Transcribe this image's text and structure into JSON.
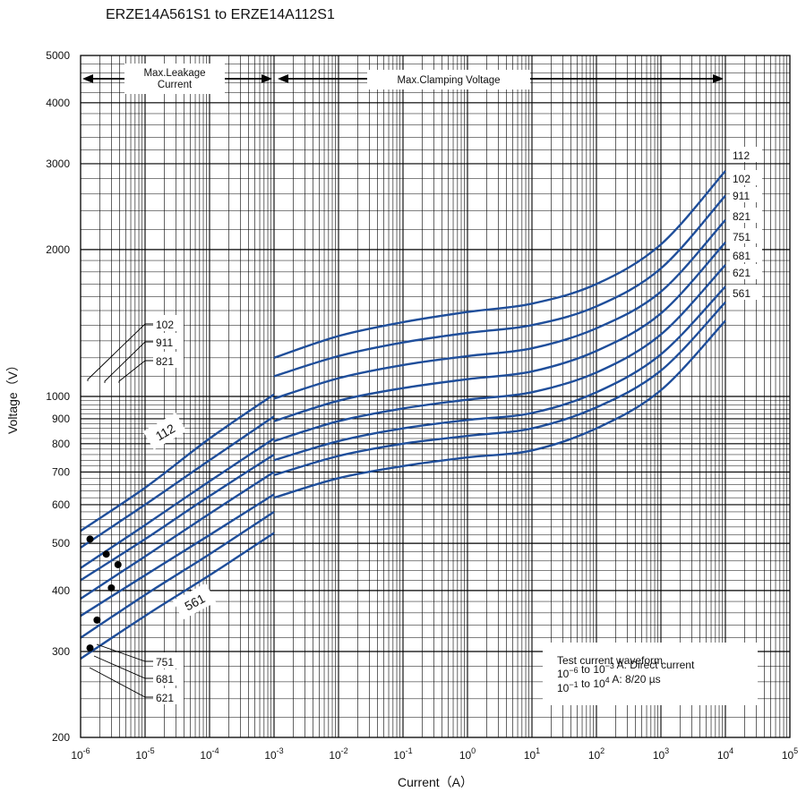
{
  "title": "ERZE14A561S1 to ERZE14A112S1",
  "chart_data": {
    "type": "line",
    "title": "ERZE14A561S1 to ERZE14A112S1",
    "xlabel": "Current（A）",
    "ylabel": "Voltage（V）",
    "x_scale": "log",
    "y_scale": "log",
    "xlim": [
      1e-06,
      100000.0
    ],
    "ylim": [
      200,
      5000
    ],
    "x_tick_labels": [
      "10-6",
      "10-5",
      "10-4",
      "10-3",
      "10-2",
      "10-1",
      "100",
      "101",
      "102",
      "103",
      "104",
      "105"
    ],
    "y_tick_labels": [
      "200",
      "300",
      "400",
      "500",
      "600",
      "700",
      "800",
      "900",
      "1000",
      "2000",
      "3000",
      "4000",
      "5000"
    ],
    "grid": true,
    "range_labels": {
      "leakage": "Max.Leakage\nCurrent",
      "clamping": "Max.Clamping Voltage"
    },
    "leakage_series": [
      {
        "name": "112",
        "x": [
          1e-06,
          1e-05,
          0.0001,
          0.001
        ],
        "y": [
          530,
          650,
          820,
          1010
        ]
      },
      {
        "name": "102",
        "x": [
          1e-06,
          1e-05,
          0.0001,
          0.001
        ],
        "y": [
          490,
          600,
          740,
          910
        ]
      },
      {
        "name": "911",
        "x": [
          1e-06,
          1e-05,
          0.0001,
          0.001
        ],
        "y": [
          445,
          545,
          670,
          820
        ]
      },
      {
        "name": "821",
        "x": [
          1e-06,
          1e-05,
          0.0001,
          0.001
        ],
        "y": [
          420,
          510,
          625,
          760
        ]
      },
      {
        "name": "751",
        "x": [
          1e-06,
          1e-05,
          0.0001,
          0.001
        ],
        "y": [
          385,
          470,
          575,
          700
        ]
      },
      {
        "name": "681",
        "x": [
          1e-06,
          1e-05,
          0.0001,
          0.001
        ],
        "y": [
          355,
          430,
          520,
          630
        ]
      },
      {
        "name": "621",
        "x": [
          1e-06,
          1e-05,
          0.0001,
          0.001
        ],
        "y": [
          320,
          392,
          475,
          580
        ]
      },
      {
        "name": "561",
        "x": [
          1e-06,
          1e-05,
          0.0001,
          0.001
        ],
        "y": [
          290,
          355,
          430,
          525
        ]
      }
    ],
    "clamping_series": [
      {
        "name": "112",
        "x": [
          0.001,
          0.01,
          0.1,
          1,
          10,
          100,
          1000,
          10000
        ],
        "y": [
          1200,
          1330,
          1420,
          1490,
          1550,
          1700,
          2050,
          2900
        ]
      },
      {
        "name": "102",
        "x": [
          0.001,
          0.01,
          0.1,
          1,
          10,
          100,
          1000,
          10000
        ],
        "y": [
          1100,
          1210,
          1290,
          1350,
          1400,
          1530,
          1830,
          2580
        ]
      },
      {
        "name": "911",
        "x": [
          0.001,
          0.01,
          0.1,
          1,
          10,
          100,
          1000,
          10000
        ],
        "y": [
          990,
          1090,
          1160,
          1210,
          1255,
          1380,
          1640,
          2300
        ]
      },
      {
        "name": "821",
        "x": [
          0.001,
          0.01,
          0.1,
          1,
          10,
          100,
          1000,
          10000
        ],
        "y": [
          890,
          980,
          1040,
          1085,
          1125,
          1240,
          1480,
          2070
        ]
      },
      {
        "name": "751",
        "x": [
          0.001,
          0.01,
          0.1,
          1,
          10,
          100,
          1000,
          10000
        ],
        "y": [
          810,
          890,
          945,
          985,
          1020,
          1120,
          1340,
          1860
        ]
      },
      {
        "name": "681",
        "x": [
          0.001,
          0.01,
          0.1,
          1,
          10,
          100,
          1000,
          10000
        ],
        "y": [
          740,
          810,
          860,
          895,
          925,
          1020,
          1220,
          1680
        ]
      },
      {
        "name": "621",
        "x": [
          0.001,
          0.01,
          0.1,
          1,
          10,
          100,
          1000,
          10000
        ],
        "y": [
          690,
          755,
          800,
          830,
          860,
          950,
          1130,
          1560
        ]
      },
      {
        "name": "561",
        "x": [
          0.001,
          0.01,
          0.1,
          1,
          10,
          100,
          1000,
          10000
        ],
        "y": [
          620,
          680,
          720,
          750,
          775,
          860,
          1030,
          1430
        ]
      }
    ],
    "dots": [
      {
        "x": 1.4e-06,
        "y": 510
      },
      {
        "x": 2.5e-06,
        "y": 475
      },
      {
        "x": 3.8e-06,
        "y": 452
      },
      {
        "x": 3e-06,
        "y": 405
      },
      {
        "x": 1.8e-06,
        "y": 348
      },
      {
        "x": 1.4e-06,
        "y": 305
      }
    ],
    "callout_labels_top": [
      "102",
      "911",
      "821"
    ],
    "callout_labels_bottom": [
      "751",
      "681",
      "621"
    ],
    "curve_labels": {
      "top": "112",
      "bottom": "561"
    },
    "end_labels": [
      "112",
      "102",
      "911",
      "821",
      "751",
      "681",
      "621",
      "561"
    ],
    "note": [
      "Test current waveform",
      "10−6 to 10−3 A: Direct current",
      "10−1 to 104 A: 8/20 µs"
    ]
  }
}
